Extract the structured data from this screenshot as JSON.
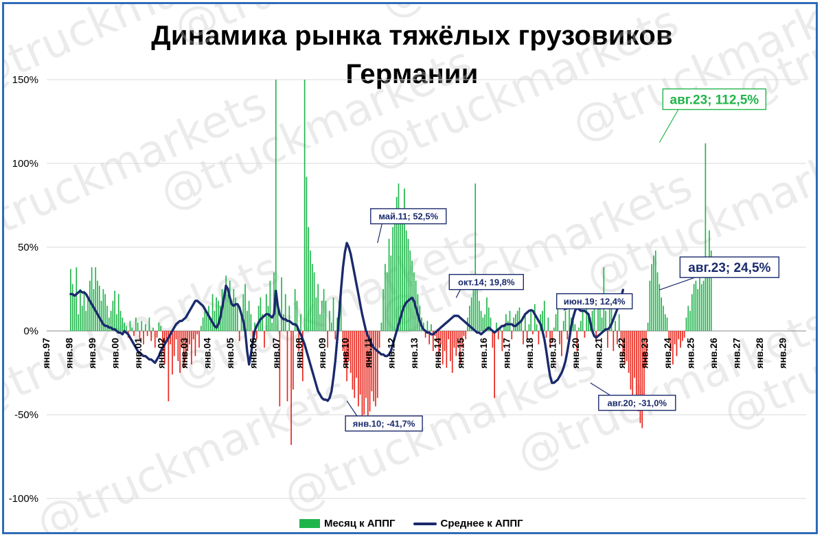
{
  "chart_data": {
    "type": "bar",
    "title_lines": [
      "Динамика рынка тяжёлых грузовиков",
      "Германии"
    ],
    "watermark": "@truckmarkets",
    "y_ticks": [
      "150%",
      "100%",
      "50%",
      "0%",
      "-50%",
      "-100%"
    ],
    "y_tick_values": [
      150,
      100,
      50,
      0,
      -50,
      -100
    ],
    "ylim": [
      -100,
      150
    ],
    "x_tick_labels": [
      "янв.97",
      "янв.98",
      "янв.99",
      "янв.00",
      "янв.01",
      "янв.02",
      "янв.03",
      "янв.04",
      "янв.05",
      "янв.06",
      "янв.07",
      "янв.08",
      "янв.09",
      "янв.10",
      "янв.11",
      "янв.12",
      "янв.13",
      "янв.14",
      "янв.15",
      "янв.16",
      "янв.17",
      "янв.18",
      "янв.19",
      "янв.20",
      "янв.21",
      "янв.22",
      "янв.23",
      "янв.24",
      "янв.25",
      "янв.26",
      "янв.27",
      "янв.28",
      "янв.29"
    ],
    "x_start": "1997-01",
    "x_end": "2029-12",
    "legend": [
      "Месяц к АППГ",
      "Среднее к АППГ"
    ],
    "colors": {
      "positive_bar": "#1fb54a",
      "negative_bar": "#e8241a",
      "line": "#1a2a6c",
      "frame": "#2e6bb7",
      "grid": "#d9d9d9"
    },
    "series": [
      {
        "name": "Месяц к АППГ",
        "kind": "bars",
        "start": "1998-01",
        "values": [
          37,
          28,
          20,
          38,
          10,
          25,
          15,
          24,
          12,
          20,
          30,
          38,
          25,
          38,
          30,
          27,
          18,
          25,
          22,
          15,
          8,
          12,
          18,
          24,
          10,
          22,
          12,
          8,
          5,
          3,
          -4,
          6,
          2,
          -3,
          8,
          5,
          -5,
          6,
          -8,
          4,
          -3,
          8,
          -6,
          2,
          -10,
          -4,
          5,
          3,
          -12,
          -20,
          -5,
          -42,
          -8,
          -26,
          -15,
          -5,
          -18,
          -25,
          -10,
          -22,
          -16,
          -12,
          -8,
          -20,
          -5,
          -15,
          -2,
          -10,
          3,
          8,
          14,
          10,
          15,
          8,
          22,
          12,
          20,
          18,
          15,
          25,
          20,
          33,
          22,
          30,
          18,
          25,
          20,
          15,
          -6,
          10,
          22,
          28,
          12,
          18,
          10,
          -8,
          5,
          -5,
          15,
          20,
          10,
          -10,
          22,
          15,
          30,
          5,
          35,
          150,
          18,
          -45,
          32,
          10,
          22,
          -42,
          15,
          -68,
          -35,
          25,
          18,
          -12,
          10,
          -30,
          150,
          92,
          62,
          48,
          40,
          35,
          20,
          28,
          10,
          18,
          25,
          18,
          -10,
          12,
          5,
          20,
          -5,
          8,
          18,
          22,
          -12,
          -20,
          -30,
          -18,
          -25,
          -35,
          -40,
          -28,
          -45,
          -38,
          -55,
          -50,
          -40,
          -60,
          -48,
          -36,
          -42,
          -45,
          -40,
          -10,
          5,
          25,
          40,
          35,
          55,
          45,
          62,
          70,
          80,
          88,
          72,
          65,
          85,
          60,
          55,
          48,
          42,
          35,
          30,
          22,
          15,
          8,
          5,
          -4,
          6,
          -8,
          4,
          -12,
          -3,
          -6,
          -15,
          -8,
          -20,
          -12,
          -22,
          -5,
          -18,
          -25,
          -10,
          -15,
          -8,
          -20,
          -10,
          -3,
          -5,
          8,
          15,
          20,
          30,
          88,
          25,
          18,
          12,
          8,
          10,
          20,
          14,
          8,
          -10,
          -40,
          5,
          -5,
          3,
          -12,
          4,
          10,
          6,
          12,
          -5,
          8,
          10,
          12,
          14,
          6,
          -8,
          10,
          -5,
          4,
          12,
          -2,
          16,
          4,
          -8,
          10,
          12,
          18,
          -4,
          8,
          -10,
          -6,
          2,
          10,
          16,
          -8,
          -15,
          6,
          12,
          -5,
          14,
          8,
          10,
          4,
          -12,
          2,
          6,
          12,
          -4,
          18,
          10,
          8,
          12,
          16,
          -6,
          14,
          20,
          8,
          38,
          12,
          -10,
          14,
          20,
          -12,
          6,
          -8,
          10,
          -5,
          -15,
          -20,
          -18,
          -25,
          -35,
          -40,
          -28,
          -45,
          -48,
          -55,
          -58,
          -40,
          -20,
          5,
          30,
          40,
          45,
          48,
          35,
          28,
          20,
          15,
          10,
          8,
          -5,
          -12,
          -20,
          -8,
          -15,
          -5,
          -10,
          -6,
          -4,
          8,
          15,
          12,
          22,
          28,
          30,
          25,
          32,
          28,
          30,
          112,
          40,
          60,
          48
        ]
      },
      {
        "name": "Среднее к АППГ",
        "kind": "line",
        "start": "1998-01",
        "values": [
          22,
          22,
          21,
          22,
          23,
          24,
          23,
          23,
          22,
          20,
          18,
          16,
          14,
          12,
          10,
          8,
          6,
          4,
          3,
          3,
          2,
          2,
          1,
          1,
          0,
          -1,
          -1,
          -2,
          0,
          -1,
          -2,
          -4,
          -6,
          -8,
          -10,
          -12,
          -13,
          -14,
          -15,
          -15,
          -16,
          -17,
          -17,
          -18,
          -19,
          -17,
          -15,
          -12,
          -10,
          -8,
          -6,
          -4,
          -2,
          0,
          2,
          4,
          5,
          6,
          6,
          7,
          8,
          10,
          12,
          14,
          16,
          18,
          18,
          17,
          16,
          15,
          13,
          11,
          9,
          7,
          5,
          3,
          2,
          4,
          8,
          14,
          20,
          27,
          25,
          20,
          16,
          15,
          16,
          16,
          14,
          10,
          6,
          0,
          -12,
          -20,
          -14,
          -6,
          0,
          3,
          5,
          7,
          8,
          9,
          10,
          10,
          9,
          8,
          10,
          24,
          15,
          10,
          8,
          7,
          7,
          6,
          6,
          5,
          4,
          4,
          3,
          0,
          -2,
          -5,
          -8,
          -12,
          -16,
          -20,
          -24,
          -28,
          -32,
          -36,
          -38,
          -40,
          -41,
          -41,
          -41.7,
          -40,
          -36,
          -28,
          -18,
          -5,
          10,
          25,
          38,
          47,
          52.5,
          50,
          46,
          40,
          34,
          28,
          22,
          16,
          10,
          5,
          0,
          -3,
          -6,
          -8,
          -10,
          -11,
          -12,
          -13,
          -14,
          -14,
          -15,
          -15,
          -14,
          -12,
          -8,
          -4,
          0,
          4,
          8,
          12,
          15,
          17,
          18,
          19,
          19.8,
          18,
          14,
          10,
          6,
          3,
          1,
          0,
          -1,
          -1,
          -2,
          -2,
          -1,
          0,
          1,
          2,
          3,
          4,
          5,
          6,
          7,
          8,
          9,
          9,
          9,
          8,
          7,
          6,
          5,
          4,
          3,
          2,
          1,
          0,
          -1,
          -1,
          -2,
          -1,
          0,
          1,
          2,
          1,
          0,
          -1,
          0,
          1,
          2,
          3,
          3,
          4,
          4,
          4,
          4,
          3,
          3,
          4,
          5,
          6,
          8,
          10,
          11,
          12,
          12.4,
          12,
          10,
          8,
          6,
          4,
          0,
          -5,
          -12,
          -20,
          -27,
          -31,
          -31,
          -30,
          -29,
          -27,
          -25,
          -22,
          -18,
          -12,
          -5,
          3,
          8,
          12,
          14,
          13,
          12,
          12,
          12,
          11,
          10,
          5,
          0,
          -3,
          -4,
          -3,
          -2,
          -1,
          0,
          1,
          1,
          2,
          4,
          7,
          10,
          13,
          16,
          20,
          24.5
        ]
      }
    ],
    "annotations": [
      {
        "label": "авг.23; 112,5%",
        "date": "2023-08",
        "value": 112.5,
        "color": "#1fb54a"
      },
      {
        "label": "авг.23; 24,5%",
        "date": "2023-08",
        "value": 24.5,
        "color": "#1a2a6c"
      },
      {
        "label": "май.11; 52,5%",
        "date": "2011-05",
        "value": 52.5,
        "color": "#1a2a6c"
      },
      {
        "label": "окт.14; 19,8%",
        "date": "2014-10",
        "value": 19.8,
        "color": "#1a2a6c"
      },
      {
        "label": "июн.19; 12,4%",
        "date": "2019-06",
        "value": 12.4,
        "color": "#1a2a6c"
      },
      {
        "label": "янв.10; -41,7%",
        "date": "2010-01",
        "value": -41.7,
        "color": "#1a2a6c"
      },
      {
        "label": "авг.20; -31,0%",
        "date": "2020-08",
        "value": -31.0,
        "color": "#1a2a6c"
      }
    ],
    "grid": true,
    "legend_position": "bottom"
  }
}
